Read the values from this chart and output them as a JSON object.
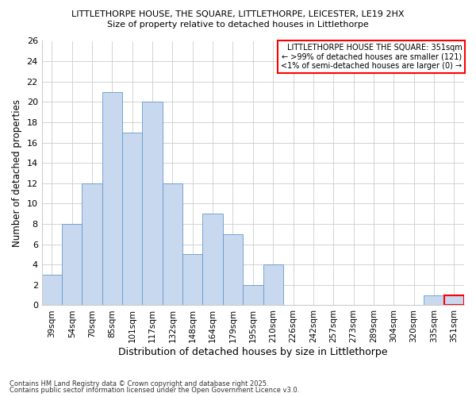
{
  "title_line1": "LITTLETHORPE HOUSE, THE SQUARE, LITTLETHORPE, LEICESTER, LE19 2HX",
  "title_line2": "Size of property relative to detached houses in Littlethorpe",
  "xlabel": "Distribution of detached houses by size in Littlethorpe",
  "ylabel": "Number of detached properties",
  "bar_color": "#C8D8EE",
  "bar_edge_color": "#6699CC",
  "categories": [
    "39sqm",
    "54sqm",
    "70sqm",
    "85sqm",
    "101sqm",
    "117sqm",
    "132sqm",
    "148sqm",
    "164sqm",
    "179sqm",
    "195sqm",
    "210sqm",
    "226sqm",
    "242sqm",
    "257sqm",
    "273sqm",
    "289sqm",
    "304sqm",
    "320sqm",
    "335sqm",
    "351sqm"
  ],
  "values": [
    3,
    8,
    12,
    21,
    17,
    20,
    12,
    5,
    9,
    7,
    2,
    4,
    0,
    0,
    0,
    0,
    0,
    0,
    0,
    1,
    1
  ],
  "ylim": [
    0,
    26
  ],
  "yticks": [
    0,
    2,
    4,
    6,
    8,
    10,
    12,
    14,
    16,
    18,
    20,
    22,
    24,
    26
  ],
  "highlight_bar_index": 20,
  "highlight_bar_edge_color": "#FF0000",
  "annotation_line1": "LITTLETHORPE HOUSE THE SQUARE: 351sqm",
  "annotation_line2": "← >99% of detached houses are smaller (121)",
  "annotation_line3": "<1% of semi-detached houses are larger (0) →",
  "annotation_box_color": "#FF0000",
  "footer_line1": "Contains HM Land Registry data © Crown copyright and database right 2025.",
  "footer_line2": "Contains public sector information licensed under the Open Government Licence v3.0.",
  "background_color": "#FFFFFF",
  "grid_color": "#CCCCCC"
}
